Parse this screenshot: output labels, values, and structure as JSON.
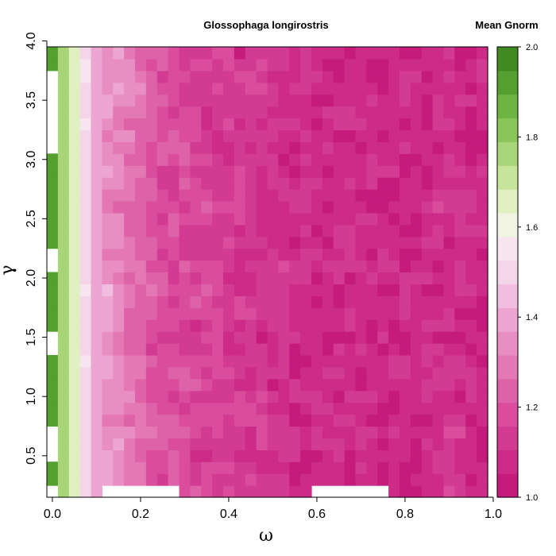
{
  "chart_data": {
    "type": "heatmap",
    "title": "Glossophaga longirostris",
    "colorbar_title": "Mean Gnorm",
    "xlabel": "ω",
    "ylabel": "γ",
    "xlim": [
      0.0,
      1.0
    ],
    "ylim": [
      0.2,
      4.0
    ],
    "x_ticks": [
      "0.0",
      "0.2",
      "0.4",
      "0.6",
      "0.8",
      "1.0"
    ],
    "y_ticks": [
      "0.5",
      "1.0",
      "1.5",
      "2.0",
      "2.5",
      "3.0",
      "3.5",
      "4.0"
    ],
    "color_range": [
      1.0,
      2.0
    ],
    "colorbar_ticks": [
      "1.0",
      "1.2",
      "1.4",
      "1.6",
      "1.8",
      "2.0"
    ],
    "palette": [
      "#c51b7d",
      "#cc2b87",
      "#d23b91",
      "#d94d9c",
      "#de62a8",
      "#e378b5",
      "#e88ec3",
      "#eda6d1",
      "#f1bedf",
      "#f5d5ea",
      "#f7e6f0",
      "#f2f4e3",
      "#e0f0c0",
      "#c7e59a",
      "#a8d577",
      "#8ac55a",
      "#6db442",
      "#559f30",
      "#418a22"
    ],
    "x_count": 40,
    "y_count": 38,
    "x_step": 0.025,
    "y_step": 0.1,
    "column_profile": [
      1.93,
      1.78,
      1.65,
      1.52,
      1.4,
      1.36,
      1.33,
      1.3,
      1.26,
      1.22,
      1.2,
      1.18,
      1.17,
      1.16,
      1.15,
      1.14,
      1.13,
      1.12,
      1.12,
      1.11,
      1.1,
      1.1,
      1.09,
      1.09,
      1.08,
      1.08,
      1.08,
      1.08,
      1.08,
      1.08,
      1.07,
      1.07,
      1.07,
      1.07,
      1.08,
      1.09,
      1.1,
      1.09,
      1.08,
      1.07
    ],
    "noise_amplitude": 0.09,
    "missing_values": [
      {
        "x": 0.0,
        "ys": [
          0.2,
          0.5,
          0.6,
          0.7,
          1.4,
          1.5,
          2.1,
          2.2,
          3.1,
          3.2,
          3.3,
          3.4,
          3.5,
          3.6,
          3.7
        ]
      },
      {
        "x_range": [
          0.125,
          0.275
        ],
        "ys": [
          0.2,
          4.0
        ]
      },
      {
        "x_range": [
          0.45,
          0.55
        ],
        "ys": [
          4.0
        ]
      },
      {
        "x_range": [
          0.6,
          0.75
        ],
        "ys": [
          0.2
        ]
      },
      {
        "x_range": [
          0.775,
          0.9
        ],
        "ys": [
          4.0
        ]
      },
      {
        "x": 1.0,
        "ys": [
          0.9,
          1.0,
          1.4,
          1.5,
          1.9,
          2.0,
          2.6,
          2.7,
          3.2,
          3.3,
          3.6,
          3.7
        ]
      }
    ]
  }
}
